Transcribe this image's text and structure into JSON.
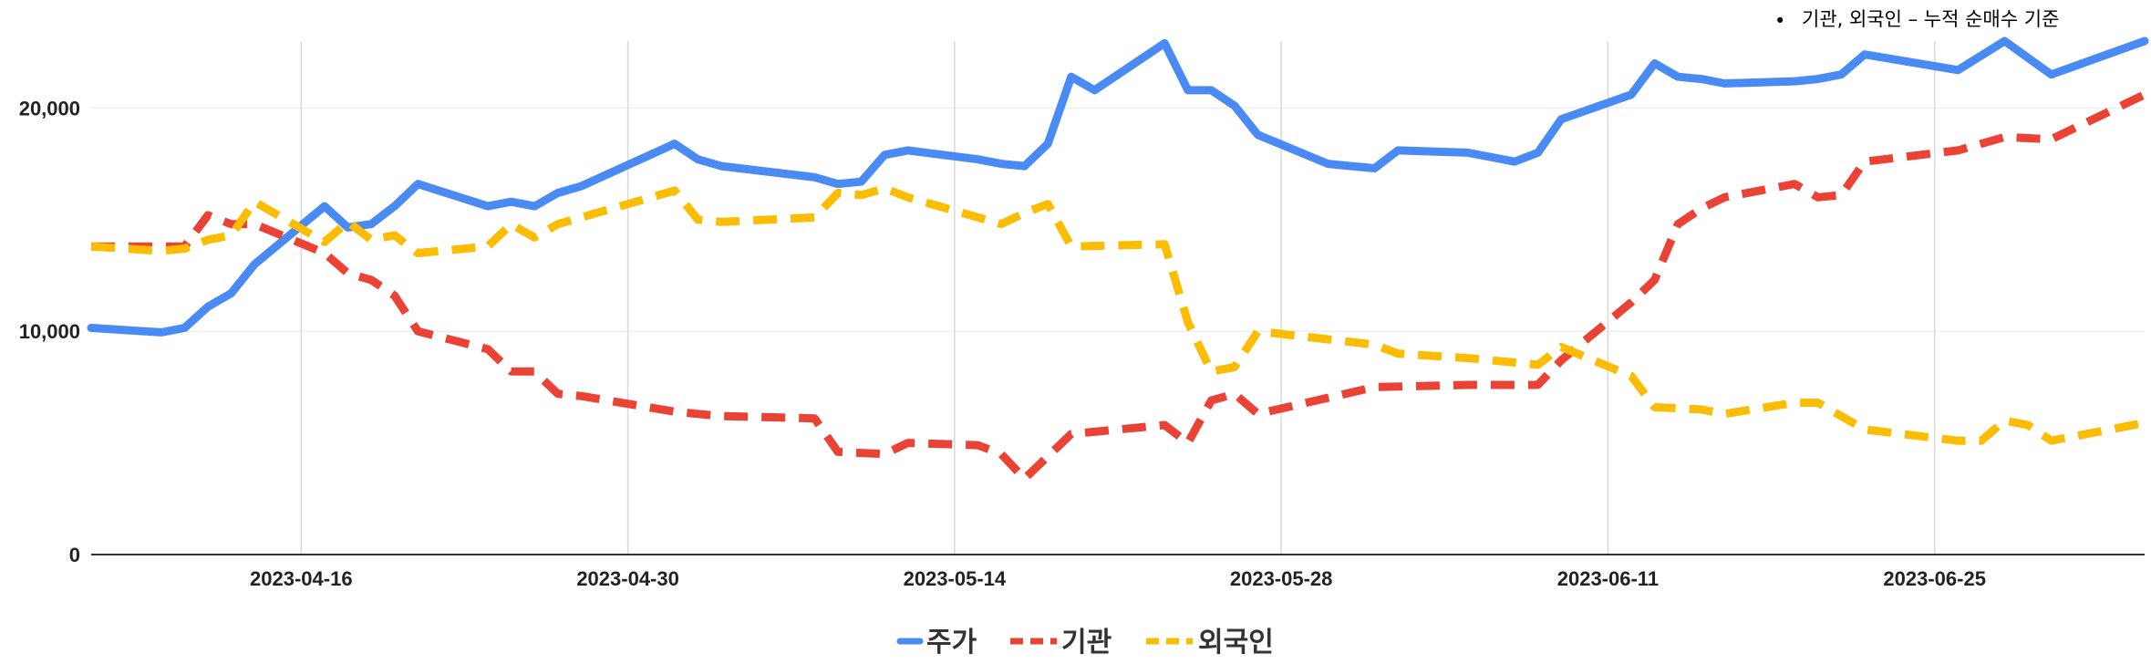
{
  "note": {
    "bullet": "•",
    "text": "기관, 외국인 – 누적 순매수 기준"
  },
  "chart_data": {
    "type": "line",
    "x_ticks": [
      "2023-04-16",
      "2023-04-30",
      "2023-05-14",
      "2023-05-28",
      "2023-06-11",
      "2023-06-25"
    ],
    "y_ticks": [
      "0",
      "10,000",
      "20,000"
    ],
    "ylim": [
      0,
      23000
    ],
    "xlim": [
      "2023-04-07",
      "2023-07-04"
    ],
    "grid": {
      "vertical": true,
      "horizontal": true
    },
    "legend_position": "bottom",
    "series": [
      {
        "name": "주가",
        "color": "#4a8af4",
        "dash": "solid",
        "points": [
          [
            "2023-04-07",
            10150
          ],
          [
            "2023-04-10",
            9950
          ],
          [
            "2023-04-11",
            10150
          ],
          [
            "2023-04-12",
            11100
          ],
          [
            "2023-04-13",
            11700
          ],
          [
            "2023-04-14",
            13000
          ],
          [
            "2023-04-17",
            15600
          ],
          [
            "2023-04-18",
            14650
          ],
          [
            "2023-04-19",
            14800
          ],
          [
            "2023-04-20",
            15600
          ],
          [
            "2023-04-21",
            16600
          ],
          [
            "2023-04-24",
            15600
          ],
          [
            "2023-04-25",
            15800
          ],
          [
            "2023-04-26",
            15600
          ],
          [
            "2023-04-27",
            16200
          ],
          [
            "2023-04-28",
            16500
          ],
          [
            "2023-05-02",
            18400
          ],
          [
            "2023-05-03",
            17700
          ],
          [
            "2023-05-04",
            17400
          ],
          [
            "2023-05-08",
            16900
          ],
          [
            "2023-05-09",
            16600
          ],
          [
            "2023-05-10",
            16700
          ],
          [
            "2023-05-11",
            17900
          ],
          [
            "2023-05-12",
            18100
          ],
          [
            "2023-05-15",
            17700
          ],
          [
            "2023-05-16",
            17500
          ],
          [
            "2023-05-17",
            17400
          ],
          [
            "2023-05-18",
            18400
          ],
          [
            "2023-05-19",
            21400
          ],
          [
            "2023-05-20",
            20800
          ],
          [
            "2023-05-23",
            22900
          ],
          [
            "2023-05-24",
            20800
          ],
          [
            "2023-05-25",
            20800
          ],
          [
            "2023-05-26",
            20100
          ],
          [
            "2023-05-27",
            18800
          ],
          [
            "2023-05-30",
            17500
          ],
          [
            "2023-05-31",
            17400
          ],
          [
            "2023-06-01",
            17300
          ],
          [
            "2023-06-02",
            18100
          ],
          [
            "2023-06-05",
            18000
          ],
          [
            "2023-06-07",
            17600
          ],
          [
            "2023-06-08",
            18000
          ],
          [
            "2023-06-09",
            19500
          ],
          [
            "2023-06-12",
            20600
          ],
          [
            "2023-06-13",
            22000
          ],
          [
            "2023-06-14",
            21400
          ],
          [
            "2023-06-15",
            21300
          ],
          [
            "2023-06-16",
            21100
          ],
          [
            "2023-06-19",
            21200
          ],
          [
            "2023-06-20",
            21300
          ],
          [
            "2023-06-21",
            21500
          ],
          [
            "2023-06-22",
            22400
          ],
          [
            "2023-06-26",
            21700
          ],
          [
            "2023-06-28",
            23000
          ],
          [
            "2023-06-30",
            21500
          ],
          [
            "2023-07-04",
            23000
          ]
        ]
      },
      {
        "name": "기관",
        "color": "#ea4335",
        "dash": "dashed",
        "points": [
          [
            "2023-04-07",
            13800
          ],
          [
            "2023-04-10",
            13800
          ],
          [
            "2023-04-11",
            13800
          ],
          [
            "2023-04-12",
            15200
          ],
          [
            "2023-04-13",
            14800
          ],
          [
            "2023-04-14",
            14800
          ],
          [
            "2023-04-17",
            13500
          ],
          [
            "2023-04-18",
            12600
          ],
          [
            "2023-04-19",
            12300
          ],
          [
            "2023-04-20",
            11600
          ],
          [
            "2023-04-21",
            10000
          ],
          [
            "2023-04-24",
            9200
          ],
          [
            "2023-04-25",
            8200
          ],
          [
            "2023-04-26",
            8200
          ],
          [
            "2023-04-27",
            7200
          ],
          [
            "2023-04-28",
            7100
          ],
          [
            "2023-05-02",
            6400
          ],
          [
            "2023-05-03",
            6300
          ],
          [
            "2023-05-04",
            6200
          ],
          [
            "2023-05-08",
            6100
          ],
          [
            "2023-05-09",
            4600
          ],
          [
            "2023-05-11",
            4500
          ],
          [
            "2023-05-12",
            5000
          ],
          [
            "2023-05-15",
            4900
          ],
          [
            "2023-05-16",
            4500
          ],
          [
            "2023-05-17",
            3400
          ],
          [
            "2023-05-19",
            5400
          ],
          [
            "2023-05-23",
            5800
          ],
          [
            "2023-05-24",
            5000
          ],
          [
            "2023-05-25",
            6900
          ],
          [
            "2023-05-26",
            7200
          ],
          [
            "2023-05-27",
            6300
          ],
          [
            "2023-06-01",
            7500
          ],
          [
            "2023-06-05",
            7600
          ],
          [
            "2023-06-08",
            7600
          ],
          [
            "2023-06-09",
            8700
          ],
          [
            "2023-06-12",
            11300
          ],
          [
            "2023-06-13",
            12300
          ],
          [
            "2023-06-14",
            14800
          ],
          [
            "2023-06-15",
            15500
          ],
          [
            "2023-06-16",
            16000
          ],
          [
            "2023-06-19",
            16600
          ],
          [
            "2023-06-20",
            16000
          ],
          [
            "2023-06-21",
            16100
          ],
          [
            "2023-06-22",
            17600
          ],
          [
            "2023-06-26",
            18100
          ],
          [
            "2023-06-28",
            18700
          ],
          [
            "2023-06-30",
            18600
          ],
          [
            "2023-07-04",
            20600
          ]
        ]
      },
      {
        "name": "외국인",
        "color": "#fbbc04",
        "dash": "dashed",
        "points": [
          [
            "2023-04-07",
            13800
          ],
          [
            "2023-04-10",
            13600
          ],
          [
            "2023-04-11",
            13700
          ],
          [
            "2023-04-12",
            14100
          ],
          [
            "2023-04-13",
            14300
          ],
          [
            "2023-04-14",
            15800
          ],
          [
            "2023-04-17",
            14000
          ],
          [
            "2023-04-18",
            14900
          ],
          [
            "2023-04-19",
            14100
          ],
          [
            "2023-04-20",
            14300
          ],
          [
            "2023-04-21",
            13500
          ],
          [
            "2023-04-24",
            13800
          ],
          [
            "2023-04-25",
            14800
          ],
          [
            "2023-04-26",
            14200
          ],
          [
            "2023-04-27",
            14800
          ],
          [
            "2023-05-02",
            16300
          ],
          [
            "2023-05-03",
            15000
          ],
          [
            "2023-05-04",
            14900
          ],
          [
            "2023-05-08",
            15100
          ],
          [
            "2023-05-09",
            16200
          ],
          [
            "2023-05-10",
            16100
          ],
          [
            "2023-05-11",
            16400
          ],
          [
            "2023-05-12",
            16000
          ],
          [
            "2023-05-16",
            14800
          ],
          [
            "2023-05-17",
            15300
          ],
          [
            "2023-05-18",
            15700
          ],
          [
            "2023-05-19",
            13800
          ],
          [
            "2023-05-23",
            13900
          ],
          [
            "2023-05-24",
            10400
          ],
          [
            "2023-05-25",
            8200
          ],
          [
            "2023-05-26",
            8400
          ],
          [
            "2023-05-27",
            10000
          ],
          [
            "2023-06-01",
            9400
          ],
          [
            "2023-06-02",
            9000
          ],
          [
            "2023-06-05",
            8800
          ],
          [
            "2023-06-07",
            8600
          ],
          [
            "2023-06-08",
            8500
          ],
          [
            "2023-06-09",
            9300
          ],
          [
            "2023-06-12",
            8000
          ],
          [
            "2023-06-13",
            6600
          ],
          [
            "2023-06-15",
            6500
          ],
          [
            "2023-06-16",
            6300
          ],
          [
            "2023-06-19",
            6800
          ],
          [
            "2023-06-20",
            6800
          ],
          [
            "2023-06-22",
            5600
          ],
          [
            "2023-06-26",
            5100
          ],
          [
            "2023-06-27",
            5100
          ],
          [
            "2023-06-28",
            6000
          ],
          [
            "2023-06-29",
            5800
          ],
          [
            "2023-06-30",
            5100
          ],
          [
            "2023-07-04",
            5900
          ]
        ]
      }
    ]
  }
}
